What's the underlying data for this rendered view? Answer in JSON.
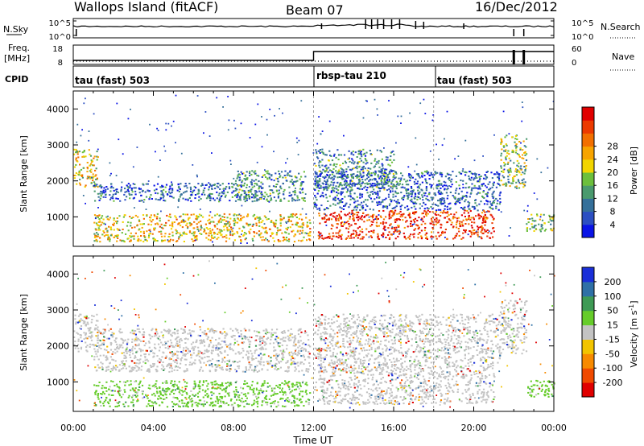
{
  "header": {
    "station": "Wallops Island (fitACF)",
    "beam": "Beam 07",
    "date": "16/Dec/2012"
  },
  "strip_labels": {
    "nsky": "N.Sky",
    "nsearch": "N.Search",
    "freq_line1": "Freq.",
    "freq_line2": "[MHz]",
    "nave": "Nave",
    "cpid": "CPID"
  },
  "noise_axis": {
    "left_top": "10^5",
    "left_bottom": "10^0",
    "right_top": "10^5",
    "right_bottom": "10^0"
  },
  "freq_axis": {
    "left_top": "18",
    "left_bottom": "8",
    "right_top": "60",
    "right_bottom": "0"
  },
  "cpid_segments": [
    {
      "label": "tau (fast) 503"
    },
    {
      "label": "rbsp-tau 210"
    },
    {
      "label": "tau (fast) 503"
    }
  ],
  "chart_data": [
    {
      "type": "heatmap",
      "title": "Power",
      "xlabel": "Time UT",
      "ylabel": "Slant Range [km]",
      "xlim_hours": [
        0,
        24
      ],
      "ylim_km": [
        180,
        4500
      ],
      "x_ticks": [
        "00:00",
        "04:00",
        "08:00",
        "12:00",
        "16:00",
        "20:00",
        "00:00"
      ],
      "y_ticks": [
        "1000",
        "2000",
        "3000",
        "4000"
      ],
      "colorbar": {
        "label": "Power [dB]",
        "ticks": [
          "4",
          "8",
          "12",
          "16",
          "20",
          "24",
          "28"
        ],
        "colors": [
          "#0a14e6",
          "#2c4fc2",
          "#35709a",
          "#4a9a6e",
          "#6cbf3c",
          "#f2d500",
          "#f7a400",
          "#f26f00",
          "#ec3a00",
          "#e00000"
        ]
      },
      "regions": [
        {
          "t": [
            0.0,
            1.2
          ],
          "r": [
            1850,
            2900
          ],
          "level": 0.55
        },
        {
          "t": [
            1.0,
            9.5
          ],
          "r": [
            1450,
            1950
          ],
          "level": 0.2
        },
        {
          "t": [
            8.0,
            11.6
          ],
          "r": [
            1450,
            2300
          ],
          "level": 0.3
        },
        {
          "t": [
            1.0,
            11.8
          ],
          "r": [
            330,
            1100
          ],
          "level": 0.6
        },
        {
          "t": [
            12.0,
            16.0
          ],
          "r": [
            1750,
            2900
          ],
          "level": 0.3
        },
        {
          "t": [
            12.0,
            21.3
          ],
          "r": [
            1200,
            2300
          ],
          "level": 0.2
        },
        {
          "t": [
            12.2,
            21.0
          ],
          "r": [
            400,
            1200
          ],
          "level": 0.88
        },
        {
          "t": [
            21.3,
            22.6
          ],
          "r": [
            1800,
            3300
          ],
          "level": 0.45
        },
        {
          "t": [
            22.6,
            24.0
          ],
          "r": [
            600,
            1100
          ],
          "level": 0.45
        }
      ]
    },
    {
      "type": "heatmap",
      "title": "Velocity",
      "xlabel": "Time UT",
      "ylabel": "Slant Range [km]",
      "xlim_hours": [
        0,
        24
      ],
      "ylim_km": [
        180,
        4500
      ],
      "x_ticks": [
        "00:00",
        "04:00",
        "08:00",
        "12:00",
        "16:00",
        "20:00",
        "00:00"
      ],
      "y_ticks": [
        "1000",
        "2000",
        "3000",
        "4000"
      ],
      "colorbar": {
        "label": "Velocity [m s^-1]",
        "ticks": [
          "200",
          "100",
          "50",
          "15",
          "-15",
          "-50",
          "-100",
          "-200"
        ],
        "colors": [
          "#1a2fd8",
          "#2f70a6",
          "#3e9a55",
          "#66cc2a",
          "#c3c3c3",
          "#f2c400",
          "#f78a00",
          "#f04a00",
          "#e00000"
        ]
      },
      "regions": [
        {
          "t": [
            0.0,
            1.2
          ],
          "r": [
            1850,
            2900
          ],
          "level": "gray"
        },
        {
          "t": [
            1.0,
            11.8
          ],
          "r": [
            1300,
            2500
          ],
          "level": "gray"
        },
        {
          "t": [
            1.0,
            11.8
          ],
          "r": [
            330,
            1050
          ],
          "level": "green"
        },
        {
          "t": [
            12.0,
            21.3
          ],
          "r": [
            1500,
            2900
          ],
          "level": "gray"
        },
        {
          "t": [
            12.0,
            21.0
          ],
          "r": [
            400,
            1500
          ],
          "level": "gray"
        },
        {
          "t": [
            21.3,
            22.6
          ],
          "r": [
            1800,
            3300
          ],
          "level": "gray"
        },
        {
          "t": [
            22.6,
            24.0
          ],
          "r": [
            600,
            1100
          ],
          "level": "green"
        }
      ]
    }
  ]
}
